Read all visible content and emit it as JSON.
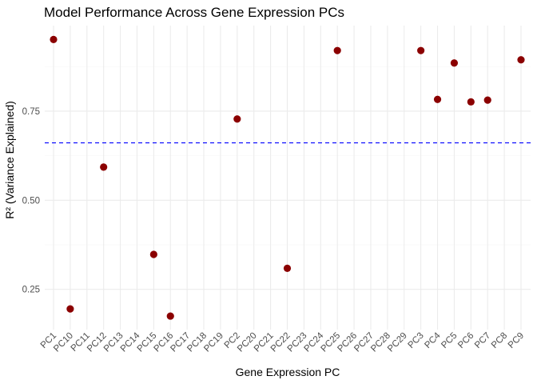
{
  "chart_data": {
    "type": "scatter",
    "title": "Model Performance Across Gene Expression PCs",
    "xlabel": "Gene Expression PC",
    "ylabel": "R² (Variance Explained)",
    "categories": [
      "PC1",
      "PC10",
      "PC11",
      "PC12",
      "PC13",
      "PC14",
      "PC15",
      "PC16",
      "PC17",
      "PC18",
      "PC19",
      "PC2",
      "PC20",
      "PC21",
      "PC22",
      "PC23",
      "PC24",
      "PC25",
      "PC26",
      "PC27",
      "PC28",
      "PC29",
      "PC3",
      "PC4",
      "PC5",
      "PC6",
      "PC7",
      "PC8",
      "PC9"
    ],
    "points": [
      {
        "x": "PC1",
        "y": 0.951
      },
      {
        "x": "PC10",
        "y": 0.195
      },
      {
        "x": "PC12",
        "y": 0.593
      },
      {
        "x": "PC15",
        "y": 0.348
      },
      {
        "x": "PC16",
        "y": 0.175
      },
      {
        "x": "PC2",
        "y": 0.728
      },
      {
        "x": "PC22",
        "y": 0.309
      },
      {
        "x": "PC25",
        "y": 0.92
      },
      {
        "x": "PC3",
        "y": 0.92
      },
      {
        "x": "PC4",
        "y": 0.783
      },
      {
        "x": "PC5",
        "y": 0.885
      },
      {
        "x": "PC6",
        "y": 0.776
      },
      {
        "x": "PC7",
        "y": 0.781
      },
      {
        "x": "PC9",
        "y": 0.894
      }
    ],
    "reference_line": {
      "y": 0.661,
      "color": "#0000ff",
      "style": "dashed"
    },
    "yticks": [
      0.25,
      0.5,
      0.75
    ],
    "ytick_labels": [
      "0.25",
      "0.50",
      "0.75"
    ],
    "ylim": [
      0.137,
      0.99
    ],
    "grid": true,
    "point_color": "#8b0000"
  }
}
